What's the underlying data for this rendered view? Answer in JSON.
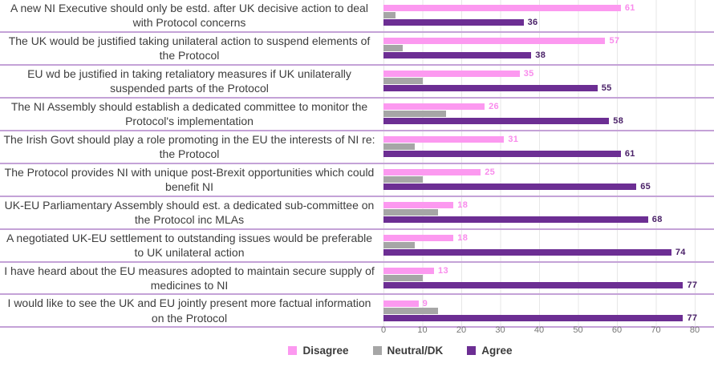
{
  "chart_data": {
    "type": "bar",
    "orientation": "horizontal",
    "title": "",
    "xlabel": "",
    "ylabel": "",
    "xlim": [
      0,
      80
    ],
    "x_ticks": [
      0,
      10,
      20,
      30,
      40,
      50,
      60,
      70,
      80
    ],
    "grid": "vertical-light-gray",
    "row_divider_color": "#c4a2d7",
    "legend_position": "bottom-center",
    "categories": [
      "A new NI Executive should only be estd. after UK decisive action to deal with Protocol concerns",
      "The UK would be justified taking unilateral action to suspend elements of the Protocol",
      "EU wd be justified in taking retaliatory measures if UK unilaterally suspended parts of the Protocol",
      "The NI Assembly should establish a dedicated committee to monitor the Protocol's implementation",
      "The Irish Govt should play a role promoting in the EU the interests of NI re: the Protocol",
      "The Protocol provides NI with unique post-Brexit opportunities which could benefit NI",
      "UK-EU Parliamentary Assembly should est. a dedicated sub-committee on the Protocol inc MLAs",
      "A negotiated UK-EU settlement to outstanding issues would be preferable to UK unilateral action",
      "I have heard about the EU measures adopted to maintain secure supply of medicines to NI",
      "I would like to see the UK and EU jointly present more factual information on the Protocol"
    ],
    "series": [
      {
        "name": "Disagree",
        "color": "#fc99f0",
        "label_color": "#f98bec",
        "show_data_labels": true,
        "values": [
          61,
          57,
          35,
          26,
          31,
          25,
          18,
          18,
          13,
          9
        ]
      },
      {
        "name": "Neutral/DK",
        "color": "#a6a6a6",
        "label_color": "#a6a6a6",
        "show_data_labels": false,
        "values": [
          3,
          5,
          10,
          16,
          8,
          10,
          14,
          8,
          10,
          14
        ]
      },
      {
        "name": "Agree",
        "color": "#6c2e93",
        "label_color": "#4a2168",
        "show_data_labels": true,
        "values": [
          36,
          38,
          55,
          58,
          61,
          65,
          68,
          74,
          77,
          77
        ]
      }
    ]
  }
}
